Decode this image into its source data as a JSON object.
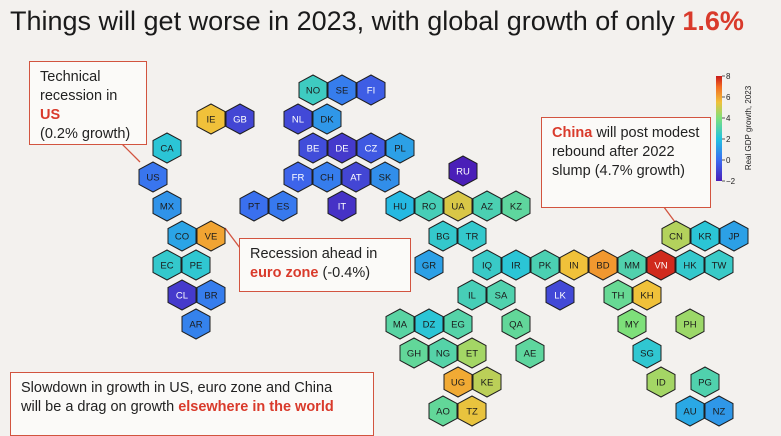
{
  "title": {
    "prefix": "Things will get worse in 2023, with global growth of only",
    "highlight": "1.6%"
  },
  "callouts": {
    "us": {
      "line1": "Technical",
      "line2_prefix": "recession in",
      "line2_highlight": "US",
      "line3": "(0.2% growth)"
    },
    "eu": {
      "line1": "Recession ahead in",
      "line2_highlight": "euro zone",
      "line2_suffix": "(-0.4%)"
    },
    "cn": {
      "line1_highlight": "China",
      "line1_suffix": "will post modest",
      "line2": "rebound after 2022",
      "line3": "slump (4.7% growth)"
    },
    "world": {
      "line1": "Slowdown in growth in US, euro zone and China",
      "line2_prefix": "will be a drag on growth",
      "line2_highlight": "elsewhere in the world"
    }
  },
  "colors": {
    "accent": "#d93a2b",
    "background": "#f3f1ee"
  },
  "chart_data": {
    "type": "heatmap",
    "layout": "hexagonal tile map",
    "colorbar": {
      "label": "Real GDP growth, 2023",
      "min": -2,
      "max": 8,
      "ticks": [
        8,
        6,
        4,
        2,
        0,
        -2
      ]
    },
    "countries": [
      {
        "code": "NO",
        "value": 2.6
      },
      {
        "code": "SE",
        "value": 0.4
      },
      {
        "code": "FI",
        "value": -0.4
      },
      {
        "code": "IE",
        "value": 5.5
      },
      {
        "code": "GB",
        "value": -1.0
      },
      {
        "code": "NL",
        "value": -0.9
      },
      {
        "code": "DK",
        "value": 1.0
      },
      {
        "code": "BE",
        "value": -0.8
      },
      {
        "code": "DE",
        "value": -1.3
      },
      {
        "code": "CZ",
        "value": -0.5
      },
      {
        "code": "PL",
        "value": 1.2
      },
      {
        "code": "CA",
        "value": 2.2
      },
      {
        "code": "RU",
        "value": -2.3
      },
      {
        "code": "FR",
        "value": -0.2
      },
      {
        "code": "CH",
        "value": 0.4
      },
      {
        "code": "AT",
        "value": -1.0
      },
      {
        "code": "SK",
        "value": 0.8
      },
      {
        "code": "US",
        "value": 0.2
      },
      {
        "code": "PT",
        "value": 0.1
      },
      {
        "code": "ES",
        "value": 0.3
      },
      {
        "code": "IT",
        "value": -1.5
      },
      {
        "code": "HU",
        "value": 1.8
      },
      {
        "code": "RO",
        "value": 2.8
      },
      {
        "code": "UA",
        "value": 5.2
      },
      {
        "code": "AZ",
        "value": 2.9
      },
      {
        "code": "KZ",
        "value": 3.3
      },
      {
        "code": "MX",
        "value": 0.9
      },
      {
        "code": "CO",
        "value": 1.3
      },
      {
        "code": "VE",
        "value": 6.0
      },
      {
        "code": "BG",
        "value": 2.4
      },
      {
        "code": "TR",
        "value": 2.4
      },
      {
        "code": "CN",
        "value": 4.7
      },
      {
        "code": "KR",
        "value": 2.2
      },
      {
        "code": "JP",
        "value": 1.2
      },
      {
        "code": "EC",
        "value": 2.4
      },
      {
        "code": "PE",
        "value": 2.3
      },
      {
        "code": "GR",
        "value": 1.2
      },
      {
        "code": "IQ",
        "value": 2.5
      },
      {
        "code": "IR",
        "value": 2.2
      },
      {
        "code": "PK",
        "value": 2.9
      },
      {
        "code": "IN",
        "value": 5.5
      },
      {
        "code": "BD",
        "value": 6.2
      },
      {
        "code": "MM",
        "value": 3.0
      },
      {
        "code": "VN",
        "value": 7.8
      },
      {
        "code": "HK",
        "value": 2.4
      },
      {
        "code": "TW",
        "value": 2.5
      },
      {
        "code": "CL",
        "value": -1.3
      },
      {
        "code": "BR",
        "value": 0.4
      },
      {
        "code": "IL",
        "value": 2.8
      },
      {
        "code": "SA",
        "value": 3.0
      },
      {
        "code": "LK",
        "value": -0.9
      },
      {
        "code": "TH",
        "value": 3.5
      },
      {
        "code": "KH",
        "value": 5.5
      },
      {
        "code": "AR",
        "value": 0.5
      },
      {
        "code": "MA",
        "value": 3.2
      },
      {
        "code": "DZ",
        "value": 2.2
      },
      {
        "code": "EG",
        "value": 3.1
      },
      {
        "code": "QA",
        "value": 3.4
      },
      {
        "code": "MY",
        "value": 4.0
      },
      {
        "code": "PH",
        "value": 4.4
      },
      {
        "code": "GH",
        "value": 3.4
      },
      {
        "code": "NG",
        "value": 3.1
      },
      {
        "code": "ET",
        "value": 4.5
      },
      {
        "code": "AE",
        "value": 3.3
      },
      {
        "code": "SG",
        "value": 2.3
      },
      {
        "code": "UG",
        "value": 5.9
      },
      {
        "code": "KE",
        "value": 4.8
      },
      {
        "code": "ID",
        "value": 4.5
      },
      {
        "code": "PG",
        "value": 3.0
      },
      {
        "code": "AO",
        "value": 3.4
      },
      {
        "code": "TZ",
        "value": 5.4
      },
      {
        "code": "AU",
        "value": 1.4
      },
      {
        "code": "NZ",
        "value": 1.0
      }
    ]
  }
}
